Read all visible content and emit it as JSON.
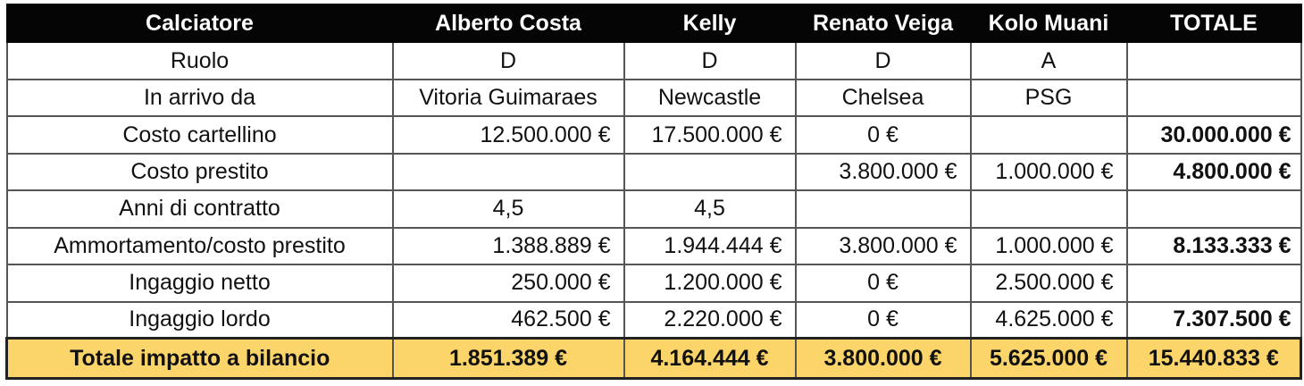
{
  "table": {
    "headers": [
      "Calciatore",
      "Alberto Costa",
      "Kelly",
      "Renato Veiga",
      "Kolo Muani",
      "TOTALE"
    ],
    "rows": [
      [
        "Ruolo",
        "D",
        "D",
        "D",
        "A",
        ""
      ],
      [
        "In arrivo da",
        "Vitoria Guimaraes",
        "Newcastle",
        "Chelsea",
        "PSG",
        ""
      ],
      [
        "Costo cartellino",
        "12.500.000 €",
        "17.500.000 €",
        "0 €",
        "",
        "30.000.000 €"
      ],
      [
        "Costo prestito",
        "",
        "",
        "3.800.000 €",
        "1.000.000 €",
        "4.800.000 €"
      ],
      [
        "Anni di contratto",
        "4,5",
        "4,5",
        "",
        "",
        ""
      ],
      [
        "Ammortamento/costo prestito",
        "1.388.889 €",
        "1.944.444 €",
        "3.800.000 €",
        "1.000.000 €",
        "8.133.333 €"
      ],
      [
        "Ingaggio netto",
        "250.000 €",
        "1.200.000 €",
        "0 €",
        "2.500.000 €",
        ""
      ],
      [
        "Ingaggio lordo",
        "462.500 €",
        "2.220.000 €",
        "0 €",
        "4.625.000 €",
        "7.307.500 €"
      ]
    ],
    "final_row": [
      "Totale impatto a bilancio",
      "1.851.389 €",
      "4.164.444 €",
      "3.800.000 €",
      "5.625.000 €",
      "15.440.833 €"
    ]
  },
  "colors": {
    "header_bg": "#050505",
    "header_text": "#ffffff",
    "highlight_row": "#fbd56a",
    "grid": "#555555"
  }
}
